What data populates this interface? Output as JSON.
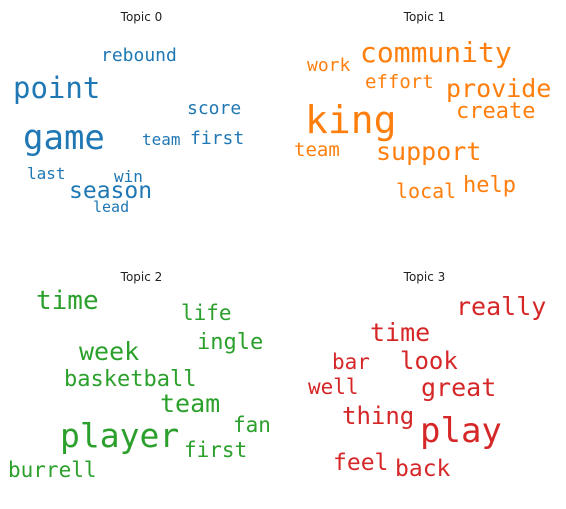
{
  "panels": [
    {
      "title": "Topic 0",
      "color": "#1f77b4",
      "words": [
        "rebound",
        "point",
        "score",
        "game",
        "team",
        "first",
        "last",
        "win",
        "season",
        "lead"
      ]
    },
    {
      "title": "Topic 1",
      "color": "#ff7f0e",
      "words": [
        "community",
        "work",
        "effort",
        "provide",
        "king",
        "create",
        "team",
        "support",
        "help",
        "local"
      ]
    },
    {
      "title": "Topic 2",
      "color": "#2ca02c",
      "words": [
        "time",
        "life",
        "ingle",
        "week",
        "basketball",
        "team",
        "fan",
        "player",
        "first",
        "burrell"
      ]
    },
    {
      "title": "Topic 3",
      "color": "#d62728",
      "words": [
        "really",
        "time",
        "bar",
        "look",
        "well",
        "great",
        "thing",
        "play",
        "feel",
        "back"
      ]
    }
  ]
}
